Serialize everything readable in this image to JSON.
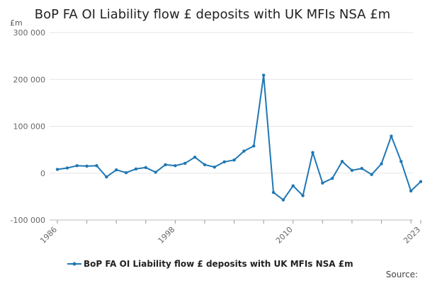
{
  "chart_data": {
    "type": "line",
    "title": "BoP FA OI Liability flow £ deposits with UK MFIs NSA £m",
    "unit_label": "£m",
    "ylim": [
      -100000,
      300000
    ],
    "yticks": [
      {
        "value": 300000,
        "label": "300 000"
      },
      {
        "value": 200000,
        "label": "200 000"
      },
      {
        "value": 100000,
        "label": "100 000"
      },
      {
        "value": 0,
        "label": "0"
      },
      {
        "value": -100000,
        "label": "-100 000"
      }
    ],
    "xlim": [
      1986,
      2023
    ],
    "xticks": [
      "1986",
      "1998",
      "2010",
      "2023"
    ],
    "grid": true,
    "legend_position": "bottom",
    "color": "#1f77b4",
    "source_label": "Source:",
    "series": [
      {
        "name": "BoP FA OI Liability flow £ deposits with UK MFIs NSA £m",
        "x": [
          1986,
          1987,
          1988,
          1989,
          1990,
          1991,
          1992,
          1993,
          1994,
          1995,
          1996,
          1997,
          1998,
          1999,
          2000,
          2001,
          2002,
          2003,
          2004,
          2005,
          2006,
          2007,
          2008,
          2009,
          2010,
          2011,
          2012,
          2013,
          2014,
          2015,
          2016,
          2017,
          2018,
          2019,
          2020,
          2021,
          2022,
          2023
        ],
        "values": [
          8000,
          11000,
          16000,
          15000,
          16000,
          -8000,
          7000,
          1000,
          9000,
          12000,
          2000,
          18000,
          16000,
          21000,
          34000,
          18000,
          13000,
          24000,
          28000,
          47000,
          58000,
          209000,
          -41000,
          -57000,
          -27000,
          -48000,
          44000,
          -21000,
          -11000,
          25000,
          6000,
          10000,
          -3000,
          20000,
          79000,
          25000,
          -38000,
          -18000
        ]
      }
    ]
  }
}
